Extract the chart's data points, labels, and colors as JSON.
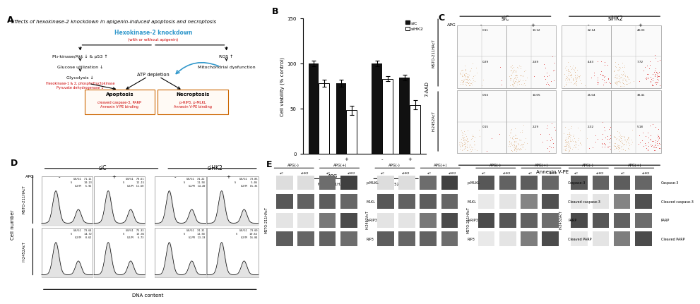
{
  "panel_A_label": "A",
  "panel_B_label": "B",
  "panel_C_label": "C",
  "panel_D_label": "D",
  "panel_E_label": "E",
  "title_A": "Effects of hexokinase-2 knockdown in apigenin-induced apoptosis and necroptosis",
  "hk2_knockdown_text": "Hexokinase-2 knockdown",
  "hk2_sub_text": "(with or without apigenin)",
  "left_branch_text1": "PI₃-kinase/Akt ↓ & p53 ↑",
  "left_branch_text2": "Glucose utilization ↓",
  "left_branch_text3": "Glycolysis ↓",
  "left_branch_text4_red": "Hexokinase-1 & 2, phosphofructokinase\nPyruvate dehydrogenase ↓",
  "right_branch_text1": "ROS ↑",
  "right_branch_text2": "Mitochondrial dysfunction",
  "center_text": "ATP depletion",
  "apoptosis_box_title": "Apoptosis",
  "apoptosis_box_red": "cleaved caspase-3, PARP\nAnnexin V-PE binding",
  "necroptosis_box_title": "Necroptosis",
  "necroptosis_box_red": "p-RIP3, p-MLKL\nAnnexin V-PE binding",
  "bar_ylabel": "Cell viability (% control)",
  "bar_siC_values": [
    100,
    78,
    100,
    84
  ],
  "bar_siHK2_values": [
    78,
    48,
    83,
    54
  ],
  "bar_siC_errors": [
    3,
    4,
    3,
    3
  ],
  "bar_siHK2_errors": [
    4,
    5,
    3,
    5
  ],
  "bar_siC_color": "#111111",
  "bar_siHK2_color": "#ffffff",
  "bar_legend_siC": "siC",
  "bar_legend_siHK2": "siHK2",
  "panel_C_xlabel": "Annexin V-PE",
  "panel_C_ylabel": "7-AAD",
  "numbers_MSTO_top": [
    "0.11",
    "13.12",
    "22.14",
    "40.03"
  ],
  "numbers_MSTO_bot": [
    "0.29",
    "2.69",
    "4.63",
    "7.72"
  ],
  "numbers_H2452_top": [
    "0.55",
    "10.05",
    "21.04",
    "30.41"
  ],
  "numbers_H2452_bot": [
    "0.15",
    "2.29",
    "2.32",
    "5.18"
  ],
  "panel_D_xlabel": "DNA content",
  "panel_D_ylabel": "Cell number",
  "d_stats_MSTO": [
    "G0/G1  71.11\nS        10.23\nG2/M   6.92",
    "G0/G1  70.61\nS        12.15\nG2/M  11.60",
    "G0/G1  74.22\nS        11.58\nG2/M  14.40",
    "G0/G1  73.85\nS          5.06\nG2/M  15.35"
  ],
  "d_stats_H2452": [
    "G0/G1  73.64\nS        14.72\nG2/M   0.62",
    "G0/G1  75.33\nS        13.94\nG2/M   6.73",
    "G0/G1  74.31\nS        12.58\nG2/M  13.33",
    "G0/G1  73.60\nS        10.64\nG2/M  16.04"
  ],
  "panel_E_proteins_necroptosis": [
    "p-MLKL",
    "MLKL",
    "p-RIP3",
    "RIP3"
  ],
  "panel_E_proteins_apoptosis": [
    "Caspase-3",
    "Cleaved caspase-3",
    "PARP",
    "Cleaved PARP"
  ],
  "background_color": "#ffffff",
  "red_color": "#cc0000",
  "blue_color": "#3399cc",
  "box_border_color": "#cc6600"
}
